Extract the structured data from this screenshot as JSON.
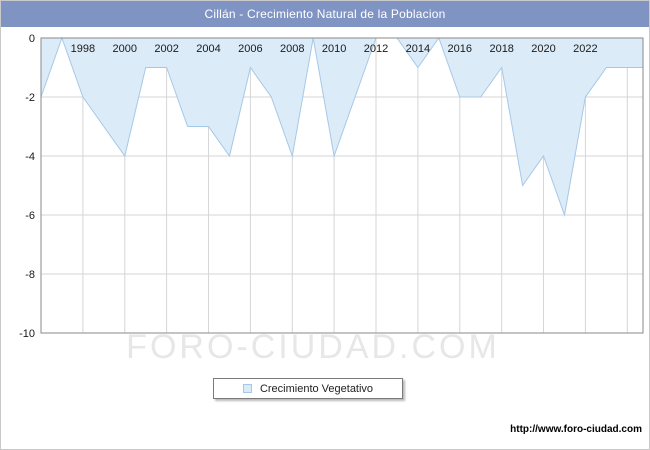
{
  "header": {
    "title": "Cillán - Crecimiento Natural de la Poblacion",
    "bg": "#8094c4"
  },
  "legend": {
    "label": "Crecimiento Vegetativo"
  },
  "watermark": {
    "text": "FORO-CIUDAD.COM"
  },
  "footer": {
    "url": "http://www.foro-ciudad.com"
  },
  "chart_data": {
    "type": "area",
    "title": "Cillán - Crecimiento Natural de la Poblacion",
    "series": [
      {
        "name": "Crecimiento Vegetativo",
        "x": [
          1996,
          1997,
          1998,
          1999,
          2000,
          2001,
          2002,
          2003,
          2004,
          2005,
          2006,
          2007,
          2008,
          2009,
          2010,
          2011,
          2012,
          2013,
          2014,
          2015,
          2016,
          2017,
          2018,
          2019,
          2020,
          2021,
          2022,
          2023,
          2024
        ],
        "values": [
          -2,
          0,
          -2,
          -3,
          -4,
          -1,
          -1,
          -3,
          -3,
          -4,
          -1,
          -2,
          -4,
          0,
          -4,
          -2,
          0,
          0,
          -1,
          0,
          -2,
          -2,
          -1,
          -5,
          -4,
          -6,
          -2,
          -1,
          -1
        ]
      }
    ],
    "xlabel": "",
    "ylabel": "",
    "xlim": [
      1996,
      2024.75
    ],
    "ylim": [
      -10,
      0
    ],
    "baseline": 0,
    "xticks": [
      1998,
      2000,
      2002,
      2004,
      2006,
      2008,
      2010,
      2012,
      2014,
      2016,
      2018,
      2020,
      2022
    ],
    "xgrid": [
      1998,
      2000,
      2002,
      2004,
      2006,
      2008,
      2010,
      2012,
      2014,
      2016,
      2018,
      2020,
      2022,
      2024
    ],
    "yticks": [
      0,
      -2,
      -4,
      -6,
      -8,
      -10
    ],
    "grid": true,
    "legend_position": "bottom",
    "colors": {
      "area_fill": "#dcebf8",
      "area_stroke": "#a6c8e8",
      "grid": "#d6d6d6",
      "plot_border": "#8a8a8a",
      "tick_text": "#1a1a1a",
      "watermark": "#e7e7e7"
    }
  }
}
